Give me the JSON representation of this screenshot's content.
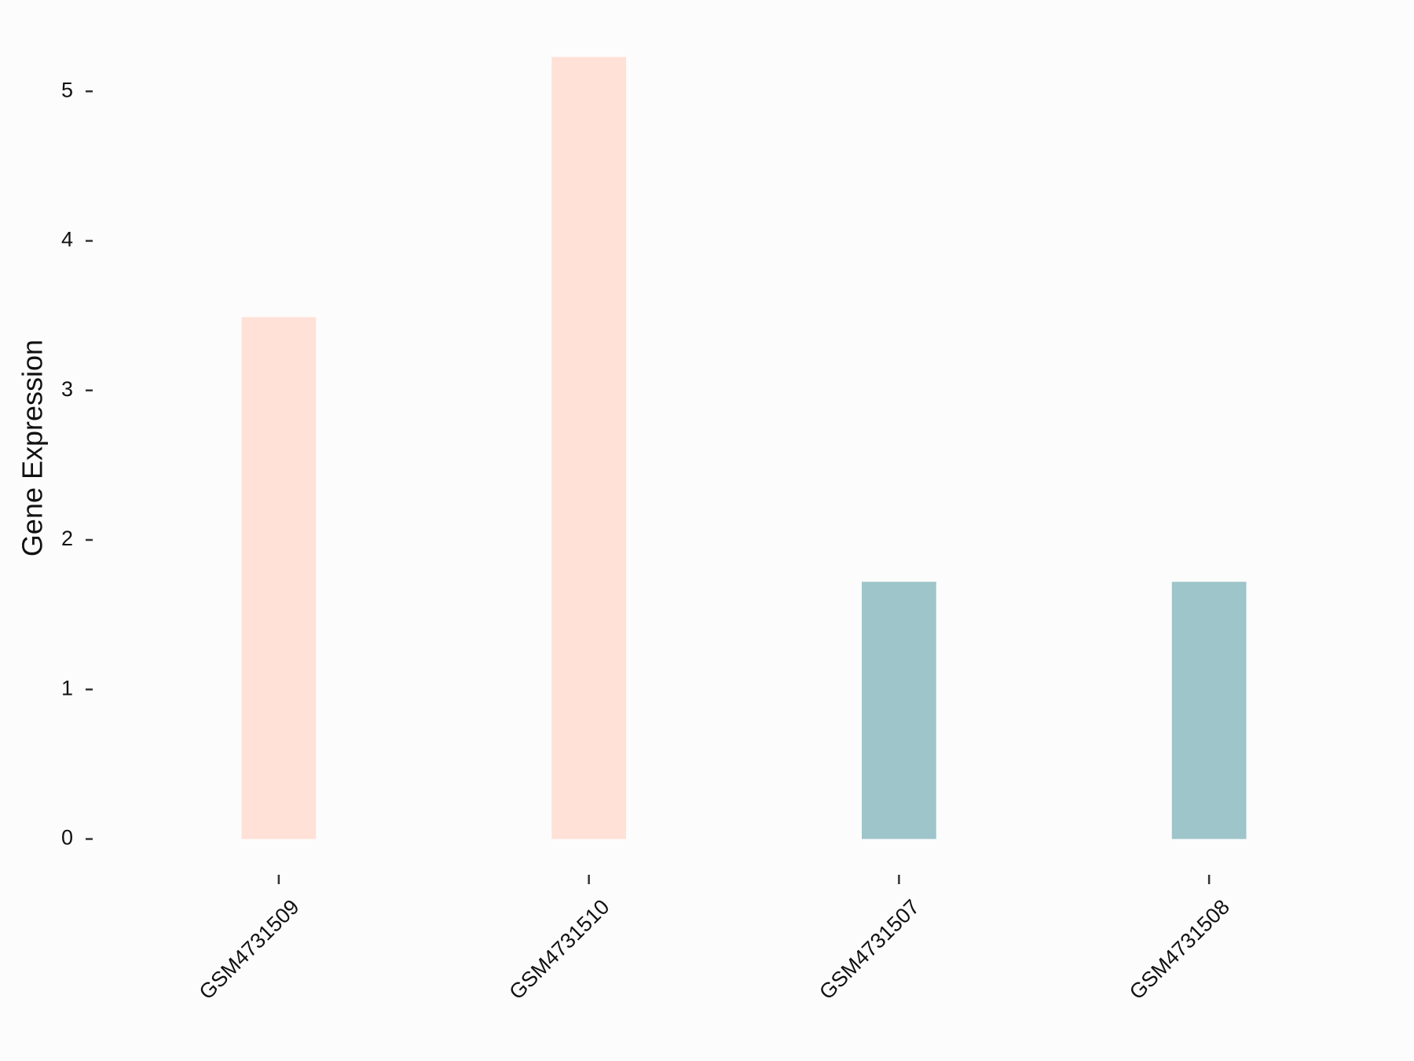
{
  "chart_data": {
    "type": "bar",
    "y_label": "Gene Expression",
    "categories": [
      "GSM4731509",
      "GSM4731510",
      "GSM4731507",
      "GSM4731508"
    ],
    "values": [
      3.49,
      5.23,
      1.72,
      1.72
    ],
    "colors": [
      "#ffe1d7",
      "#ffe1d7",
      "#9ec5c9",
      "#9ec5c9"
    ],
    "ylim": [
      -0.26,
      5.49
    ],
    "yticks": [
      0,
      1,
      2,
      3,
      4,
      5
    ]
  }
}
